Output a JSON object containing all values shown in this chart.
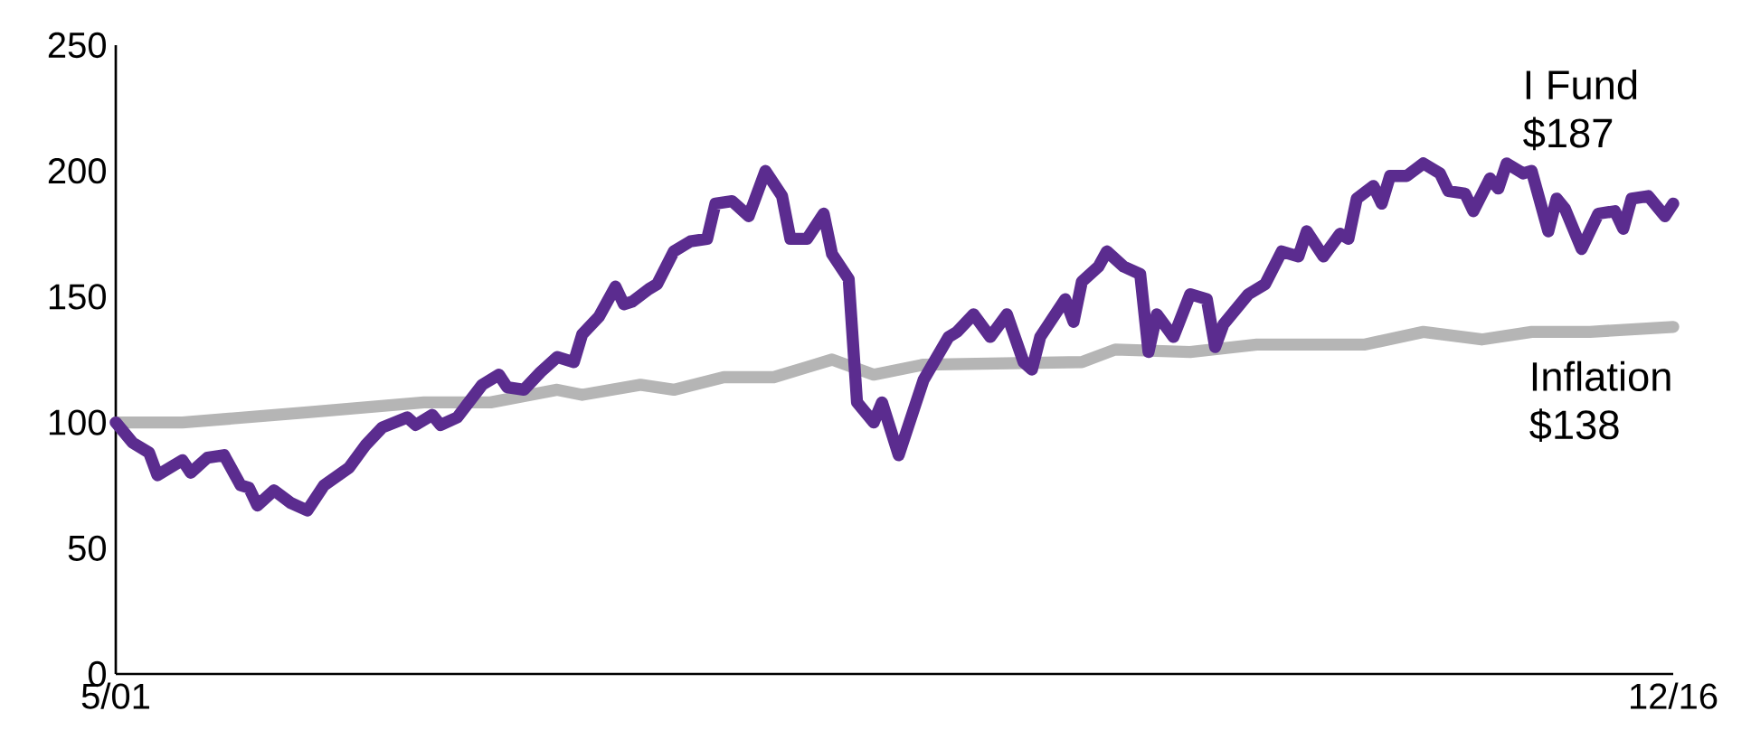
{
  "chart_data": {
    "type": "line",
    "xlim": [
      "2001-05",
      "2016-12"
    ],
    "xticks": [
      {
        "value": "2001-05",
        "label": "5/01"
      },
      {
        "value": "2016-12",
        "label": "12/16"
      }
    ],
    "ylim": [
      0,
      250
    ],
    "yticks": [
      0,
      50,
      100,
      150,
      200,
      250
    ],
    "series": [
      {
        "name": "I Fund",
        "color": "#5b2c8f",
        "x": [
          "2001-05",
          "2001-07",
          "2001-09",
          "2001-10",
          "2002-01",
          "2002-02",
          "2002-04",
          "2002-06",
          "2002-08",
          "2002-09",
          "2002-10",
          "2002-12",
          "2003-02",
          "2003-04",
          "2003-06",
          "2003-09",
          "2003-11",
          "2004-01",
          "2004-04",
          "2004-05",
          "2004-07",
          "2004-08",
          "2004-10",
          "2005-01",
          "2005-03",
          "2005-04",
          "2005-06",
          "2005-08",
          "2005-10",
          "2005-12",
          "2006-01",
          "2006-03",
          "2006-05",
          "2006-06",
          "2006-07",
          "2006-09",
          "2006-10",
          "2006-12",
          "2007-02",
          "2007-04",
          "2007-05",
          "2007-07",
          "2007-09",
          "2007-11",
          "2008-01",
          "2008-02",
          "2008-04",
          "2008-06",
          "2008-07",
          "2008-09",
          "2008-10",
          "2008-12",
          "2009-01",
          "2009-03",
          "2009-06",
          "2009-09",
          "2009-10",
          "2009-12",
          "2010-02",
          "2010-04",
          "2010-06",
          "2010-07",
          "2010-08",
          "2010-11",
          "2010-12",
          "2011-01",
          "2011-03",
          "2011-04",
          "2011-06",
          "2011-08",
          "2011-09",
          "2011-10",
          "2011-12",
          "2012-02",
          "2012-04",
          "2012-05",
          "2012-06",
          "2012-09",
          "2012-11",
          "2013-01",
          "2013-03",
          "2013-04",
          "2013-06",
          "2013-08",
          "2013-09",
          "2013-10",
          "2013-12",
          "2014-01",
          "2014-02",
          "2014-04",
          "2014-06",
          "2014-08",
          "2014-09",
          "2014-11",
          "2014-12",
          "2015-02",
          "2015-03",
          "2015-04",
          "2015-06",
          "2015-07",
          "2015-09",
          "2015-10",
          "2015-11",
          "2016-01",
          "2016-03",
          "2016-05",
          "2016-06",
          "2016-07",
          "2016-09",
          "2016-11",
          "2016-12"
        ],
        "values": [
          100,
          92,
          88,
          79,
          85,
          80,
          86,
          87,
          75,
          74,
          67,
          73,
          68,
          65,
          75,
          82,
          91,
          98,
          102,
          99,
          103,
          99,
          102,
          115,
          119,
          114,
          113,
          120,
          126,
          124,
          135,
          142,
          154,
          147,
          148,
          153,
          155,
          168,
          172,
          173,
          187,
          188,
          182,
          200,
          190,
          173,
          173,
          183,
          167,
          157,
          108,
          100,
          108,
          87,
          117,
          134,
          136,
          143,
          134,
          143,
          124,
          121,
          134,
          149,
          140,
          156,
          162,
          168,
          162,
          159,
          128,
          143,
          134,
          151,
          149,
          130,
          139,
          151,
          155,
          168,
          166,
          176,
          166,
          175,
          173,
          189,
          194,
          187,
          198,
          198,
          203,
          199,
          192,
          191,
          184,
          197,
          193,
          203,
          199,
          200,
          176,
          189,
          185,
          169,
          183,
          184,
          177,
          189,
          190,
          182,
          187
        ]
      },
      {
        "name": "Inflation",
        "color": "#b5b5b5",
        "x": [
          "2001-05",
          "2002-01",
          "2003-04",
          "2004-06",
          "2005-02",
          "2005-10",
          "2006-01",
          "2006-08",
          "2006-12",
          "2007-06",
          "2007-12",
          "2008-04",
          "2008-07",
          "2008-12",
          "2009-06",
          "2011-01",
          "2011-05",
          "2012-02",
          "2012-10",
          "2013-11",
          "2014-06",
          "2015-01",
          "2015-07",
          "2016-02",
          "2016-12"
        ],
        "values": [
          100,
          100,
          104,
          108,
          108,
          113,
          111,
          115,
          113,
          118,
          118,
          122,
          125,
          119,
          123,
          124,
          129,
          128,
          131,
          131,
          136,
          133,
          136,
          136,
          138
        ]
      }
    ],
    "annotations": [
      {
        "text": "$187",
        "x": "2016-12",
        "y": 187
      },
      {
        "text": "$138",
        "x": "2016-12",
        "y": 138
      }
    ]
  }
}
